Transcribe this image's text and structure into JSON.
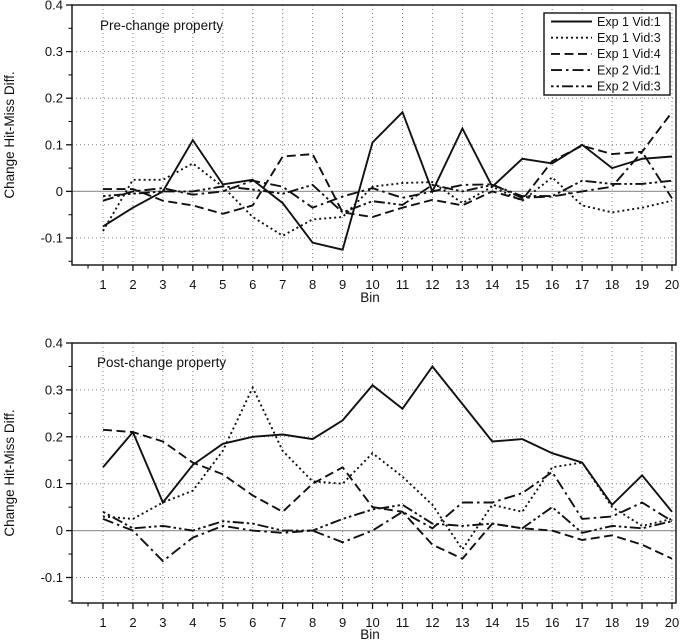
{
  "figure": {
    "background": "#ffffff",
    "line_color": "#111111",
    "grid_color": "#808080",
    "zero_line_color": "#9a9a9a"
  },
  "legend": {
    "position": "top-right-of-first-panel",
    "entries": [
      {
        "label": "Exp 1 Vid:1",
        "style": "solid"
      },
      {
        "label": "Exp 1 Vid:3",
        "style": "dotted"
      },
      {
        "label": "Exp 1 Vid:4",
        "style": "dashed"
      },
      {
        "label": "Exp 2 Vid:1",
        "style": "dashdot"
      },
      {
        "label": "Exp 2 Vid:3",
        "style": "dashdotdot"
      }
    ]
  },
  "chart_data": [
    {
      "type": "line",
      "title": "Pre-change property",
      "xlabel": "Bin",
      "ylabel": "Change Hit-Miss Diff.",
      "grid": true,
      "xlim": [
        1,
        20
      ],
      "ylim": [
        -0.16,
        0.4
      ],
      "x": [
        1,
        2,
        3,
        4,
        5,
        6,
        7,
        8,
        9,
        10,
        11,
        12,
        13,
        14,
        15,
        16,
        17,
        18,
        19,
        20
      ],
      "yticks": [
        -0.1,
        0,
        0.1,
        0.2,
        0.3,
        0.4
      ],
      "ytick_labels": [
        "-0.1",
        "0",
        "0.1",
        "0.2",
        "0.3",
        "0.4"
      ],
      "series": [
        {
          "name": "Exp 1 Vid:1",
          "style": "solid",
          "values": [
            -0.075,
            -0.035,
            0,
            0.11,
            0.015,
            0.025,
            -0.025,
            -0.11,
            -0.125,
            0.105,
            0.17,
            0,
            0.135,
            0.01,
            0.07,
            0.06,
            0.1,
            0.05,
            0.07,
            0.075
          ]
        },
        {
          "name": "Exp 1 Vid:3",
          "style": "dotted",
          "values": [
            -0.085,
            0.025,
            0.025,
            0.06,
            0.01,
            -0.055,
            -0.095,
            -0.06,
            -0.055,
            0.01,
            0.018,
            0.02,
            -0.025,
            0.01,
            -0.02,
            0.03,
            -0.03,
            -0.045,
            -0.035,
            -0.02
          ]
        },
        {
          "name": "Exp 1 Vid:4",
          "style": "dashed",
          "values": [
            0.005,
            0.005,
            -0.02,
            -0.03,
            -0.048,
            -0.03,
            0.075,
            0.08,
            -0.045,
            -0.055,
            -0.035,
            -0.018,
            -0.03,
            0,
            -0.018,
            0.065,
            0.098,
            0.08,
            0.085,
            0.17
          ]
        },
        {
          "name": "Exp 2 Vid:1",
          "style": "dashdot",
          "values": [
            -0.02,
            0,
            0.007,
            -0.007,
            0,
            0.023,
            0.01,
            -0.035,
            -0.011,
            0.007,
            -0.014,
            0,
            0.014,
            0.015,
            -0.014,
            -0.011,
            0,
            0.01,
            0.085,
            -0.015
          ]
        },
        {
          "name": "Exp 2 Vid:3",
          "style": "dashdotdot",
          "values": [
            -0.01,
            -0.005,
            0,
            0,
            0.011,
            0.004,
            -0.005,
            0.014,
            -0.045,
            -0.021,
            -0.029,
            0.014,
            0,
            0.014,
            -0.01,
            -0.01,
            0.023,
            0.016,
            0.016,
            0.023
          ]
        }
      ]
    },
    {
      "type": "line",
      "title": "Post-change property",
      "xlabel": "Bin",
      "ylabel": "Change Hit-Miss Diff.",
      "grid": true,
      "xlim": [
        1,
        20
      ],
      "ylim": [
        -0.155,
        0.4
      ],
      "x": [
        1,
        2,
        3,
        4,
        5,
        6,
        7,
        8,
        9,
        10,
        11,
        12,
        13,
        14,
        15,
        16,
        17,
        18,
        19,
        20
      ],
      "yticks": [
        -0.1,
        0,
        0.1,
        0.2,
        0.3,
        0.4
      ],
      "ytick_labels": [
        "-0.1",
        "0",
        "0.1",
        "0.2",
        "0.3",
        "0.4"
      ],
      "series": [
        {
          "name": "Exp 1 Vid:1",
          "style": "solid",
          "values": [
            0.135,
            0.21,
            0.06,
            0.14,
            0.185,
            0.2,
            0.205,
            0.195,
            0.235,
            0.31,
            0.26,
            0.35,
            0.27,
            0.19,
            0.195,
            0.165,
            0.145,
            0.055,
            0.118,
            0.04
          ]
        },
        {
          "name": "Exp 1 Vid:3",
          "style": "dotted",
          "values": [
            0.03,
            0.025,
            0.06,
            0.085,
            0.17,
            0.305,
            0.17,
            0.105,
            0.1,
            0.165,
            0.115,
            0.055,
            -0.04,
            0.055,
            0.04,
            0.135,
            0.145,
            0.05,
            0.01,
            0.025
          ]
        },
        {
          "name": "Exp 1 Vid:4",
          "style": "dashed",
          "values": [
            0.215,
            0.21,
            0.19,
            0.145,
            0.12,
            0.075,
            0.04,
            0.1,
            0.135,
            0.05,
            0.04,
            -0.03,
            -0.06,
            0.015,
            0.005,
            0,
            -0.02,
            -0.01,
            -0.03,
            -0.06
          ]
        },
        {
          "name": "Exp 2 Vid:1",
          "style": "dashdot",
          "values": [
            0.025,
            0,
            -0.065,
            -0.015,
            0.01,
            0,
            -0.005,
            0,
            -0.025,
            0,
            0.04,
            0.005,
            0.06,
            0.06,
            0.08,
            0.125,
            0.025,
            0.03,
            0.06,
            0.02
          ]
        },
        {
          "name": "Exp 2 Vid:3",
          "style": "dashdotdot",
          "values": [
            0.04,
            0.005,
            0.01,
            0,
            0.02,
            0.015,
            0,
            0,
            0.025,
            0.045,
            0.055,
            0.015,
            0.01,
            0.015,
            0.005,
            0.05,
            -0.005,
            0.01,
            0.005,
            0.02
          ]
        }
      ]
    }
  ]
}
